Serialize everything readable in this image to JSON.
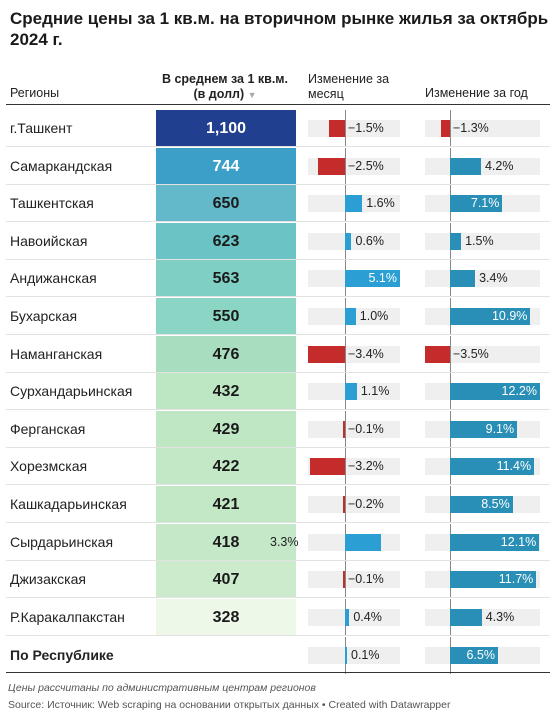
{
  "title": "Средние цены за 1 кв.м. на вторичном рынке жилья за октябрь 2024 г.",
  "headers": {
    "regions": "Регионы",
    "avg_price": "В среднем за 1 кв.м. (в долл)",
    "sort_arrow": "▼",
    "month_change": "Изменение за месяц",
    "year_change": "Изменение за год"
  },
  "colors": {
    "positive": "#2a8fb6",
    "positive_month": "#2b9fd3",
    "negative": "#c42b2b",
    "track": "#efefef"
  },
  "chart_data": {
    "type": "table",
    "columns": [
      "Регионы",
      "В среднем за 1 кв.м. (в долл)",
      "Изменение за месяц",
      "Изменение за год"
    ],
    "rows": [
      {
        "region": "г.Ташкент",
        "avg": "1,100",
        "month": "−1.5%",
        "year": "−1.3%",
        "month_val": -1.5,
        "year_val": -1.3,
        "bg": "#203f8e",
        "fg": "#ffffff"
      },
      {
        "region": "Самаркандская",
        "avg": "744",
        "month": "−2.5%",
        "year": "4.2%",
        "month_val": -2.5,
        "year_val": 4.2,
        "bg": "#3c9fc8",
        "fg": "#ffffff"
      },
      {
        "region": "Ташкентская",
        "avg": "650",
        "month": "1.6%",
        "year": "7.1%",
        "month_val": 1.6,
        "year_val": 7.1,
        "bg": "#63b9c9",
        "fg": "#1a1a1a"
      },
      {
        "region": "Навоийская",
        "avg": "623",
        "month": "0.6%",
        "year": "1.5%",
        "month_val": 0.6,
        "year_val": 1.5,
        "bg": "#6cc3c6",
        "fg": "#1a1a1a"
      },
      {
        "region": "Андижанская",
        "avg": "563",
        "month": "5.1%",
        "year": "3.4%",
        "month_val": 5.1,
        "year_val": 3.4,
        "bg": "#7fcfc4",
        "fg": "#1a1a1a"
      },
      {
        "region": "Бухарская",
        "avg": "550",
        "month": "1.0%",
        "year": "10.9%",
        "month_val": 1.0,
        "year_val": 10.9,
        "bg": "#8ad5c4",
        "fg": "#1a1a1a"
      },
      {
        "region": "Наманганская",
        "avg": "476",
        "month": "−3.4%",
        "year": "−3.5%",
        "month_val": -3.4,
        "year_val": -3.5,
        "bg": "#a8ddc0",
        "fg": "#1a1a1a"
      },
      {
        "region": "Сурхандарьинская",
        "avg": "432",
        "month": "1.1%",
        "year": "12.2%",
        "month_val": 1.1,
        "year_val": 12.2,
        "bg": "#bde6c3",
        "fg": "#1a1a1a"
      },
      {
        "region": "Ферганская",
        "avg": "429",
        "month": "−0.1%",
        "year": "9.1%",
        "month_val": -0.1,
        "year_val": 9.1,
        "bg": "#bfe7c4",
        "fg": "#1a1a1a"
      },
      {
        "region": "Хорезмская",
        "avg": "422",
        "month": "−3.2%",
        "year": "11.4%",
        "month_val": -3.2,
        "year_val": 11.4,
        "bg": "#c2e8c6",
        "fg": "#1a1a1a"
      },
      {
        "region": "Кашкадарьинская",
        "avg": "421",
        "month": "−0.2%",
        "year": "8.5%",
        "month_val": -0.2,
        "year_val": 8.5,
        "bg": "#c3e8c6",
        "fg": "#1a1a1a"
      },
      {
        "region": "Сырдарьинская",
        "avg": "418",
        "month": "3.3%",
        "year": "12.1%",
        "month_val": 3.3,
        "year_val": 12.1,
        "bg": "#c5e9c8",
        "fg": "#1a1a1a"
      },
      {
        "region": "Джизакская",
        "avg": "407",
        "month": "−0.1%",
        "year": "11.7%",
        "month_val": -0.1,
        "year_val": 11.7,
        "bg": "#cbebcc",
        "fg": "#1a1a1a"
      },
      {
        "region": "Р.Каракалпакстан",
        "avg": "328",
        "month": "0.4%",
        "year": "4.3%",
        "month_val": 0.4,
        "year_val": 4.3,
        "bg": "#eef8e8",
        "fg": "#1a1a1a"
      }
    ],
    "total": {
      "region": "По Республике",
      "month": "0.1%",
      "year": "6.5%",
      "month_val": 0.1,
      "year_val": 6.5
    },
    "month_range": [
      -3.4,
      5.1
    ],
    "year_range": [
      -3.5,
      12.2
    ]
  },
  "footer": {
    "note": "Цены рассчитаны по административным центрам регионов",
    "source": "Source: Источник: Web scraping на основании открытых данных • Created with Datawrapper"
  }
}
